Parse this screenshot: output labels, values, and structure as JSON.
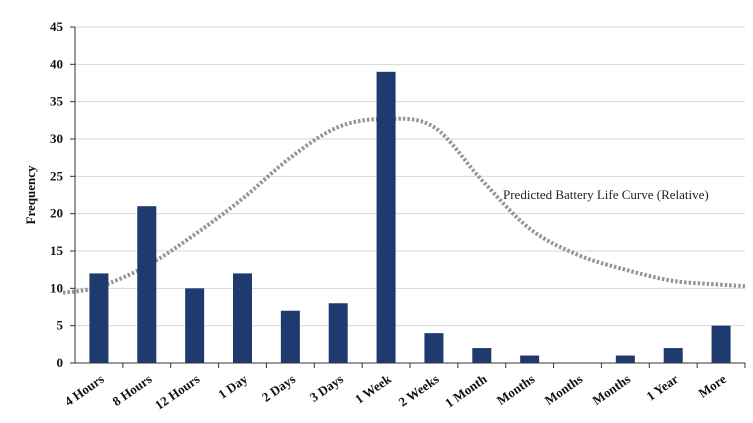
{
  "chart_data": {
    "type": "bar",
    "title": "",
    "xlabel": "",
    "ylabel": "Frequency",
    "ylim": [
      0,
      45
    ],
    "yticks": [
      0,
      5,
      10,
      15,
      20,
      25,
      30,
      35,
      40,
      45
    ],
    "grid": true,
    "categories": [
      "4 Hours",
      "8 Hours",
      "12 Hours",
      "1 Day",
      "2 Days",
      "3 Days",
      "1 Week",
      "2 Weeks",
      "1 Month",
      "Months",
      "Months",
      "Months",
      "1 Year",
      "More"
    ],
    "values": [
      12,
      21,
      10,
      12,
      7,
      8,
      39,
      4,
      2,
      1,
      0,
      1,
      2,
      5
    ],
    "curve": {
      "label": "Predicted Battery Life Curve (Relative)",
      "values": [
        10.2,
        13.0,
        17.2,
        22.0,
        27.5,
        31.6,
        32.7,
        31.6,
        24.5,
        18.0,
        14.5,
        12.5,
        11.0,
        10.5
      ]
    },
    "colors": {
      "bar": "#1f3a6e",
      "curve": "#8a8a8a",
      "grid": "#d6d6d6",
      "axis": "#333333"
    }
  }
}
